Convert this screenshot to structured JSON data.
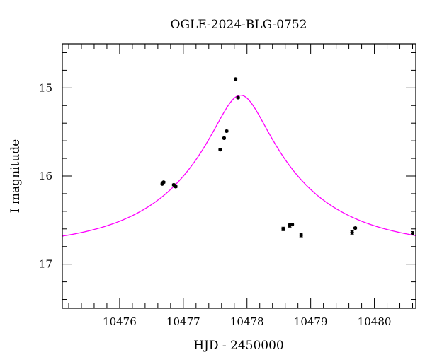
{
  "chart_data": {
    "type": "scatter",
    "title": "OGLE-2024-BLG-0752",
    "xlabel": "HJD - 2450000",
    "ylabel": "I magnitude",
    "xlim": [
      10475.1,
      10480.65
    ],
    "ylim": [
      17.5,
      14.5
    ],
    "y_inverted": true,
    "grid": false,
    "x_major_ticks": [
      10476,
      10477,
      10478,
      10479,
      10480
    ],
    "x_tick_labels": [
      "10476",
      "10477",
      "10478",
      "10479",
      "10480"
    ],
    "y_major_ticks": [
      15,
      16,
      17
    ],
    "y_tick_labels": [
      "15",
      "16",
      "17"
    ],
    "point_color": "#000000",
    "curve_color": "#ff00ff",
    "series": [
      {
        "type": "scatter",
        "points": [
          {
            "x": 10476.67,
            "y": 16.09,
            "err": 0.01
          },
          {
            "x": 10476.69,
            "y": 16.07,
            "err": 0.01
          },
          {
            "x": 10476.85,
            "y": 16.1,
            "err": 0.01
          },
          {
            "x": 10476.88,
            "y": 16.12,
            "err": 0.01
          },
          {
            "x": 10477.58,
            "y": 15.7,
            "err": 0.01
          },
          {
            "x": 10477.64,
            "y": 15.57,
            "err": 0.01
          },
          {
            "x": 10477.68,
            "y": 15.49,
            "err": 0.01
          },
          {
            "x": 10477.82,
            "y": 14.9,
            "err": 0.01
          },
          {
            "x": 10477.86,
            "y": 15.11,
            "err": 0.01
          },
          {
            "x": 10478.57,
            "y": 16.6,
            "err": 0.02
          },
          {
            "x": 10478.67,
            "y": 16.56,
            "err": 0.02
          },
          {
            "x": 10478.71,
            "y": 16.55,
            "err": 0.01
          },
          {
            "x": 10478.85,
            "y": 16.67,
            "err": 0.02
          },
          {
            "x": 10479.65,
            "y": 16.64,
            "err": 0.02
          },
          {
            "x": 10479.7,
            "y": 16.59,
            "err": 0.01
          },
          {
            "x": 10480.6,
            "y": 16.65,
            "err": 0.02
          }
        ]
      },
      {
        "type": "line",
        "model": "point-lens microlensing",
        "t0": 10477.9,
        "tE": 1.9,
        "u0": 0.205,
        "baseline_mag": 16.82
      }
    ]
  }
}
